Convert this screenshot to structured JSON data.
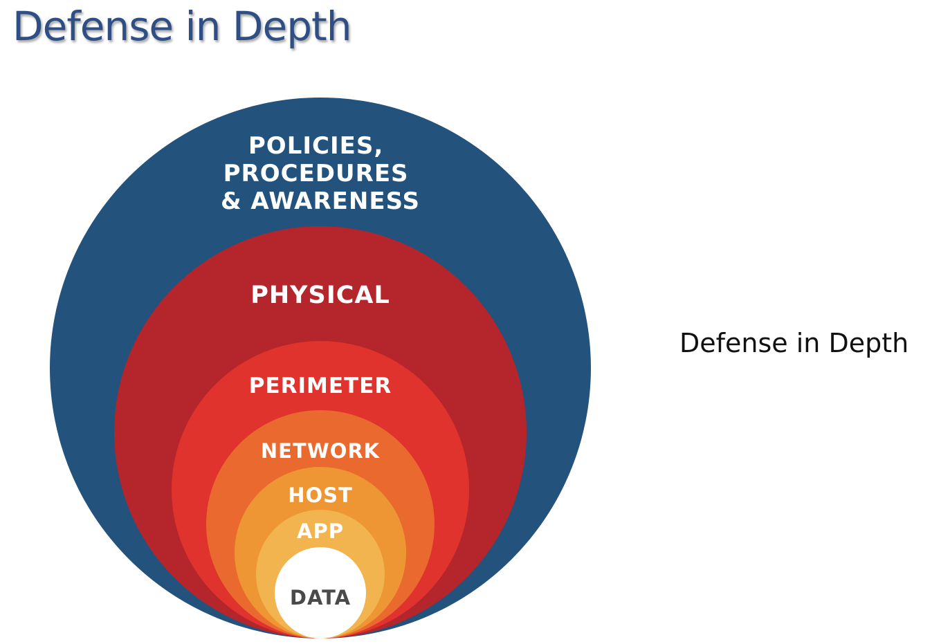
{
  "slide": {
    "title": "Defense in Depth",
    "side_caption": "Defense in Depth"
  },
  "diagram": {
    "layers": [
      {
        "id": "policies",
        "label_lines": [
          "POLICIES,",
          "PROCEDURES",
          "& AWARENESS"
        ],
        "color": "#23527c"
      },
      {
        "id": "physical",
        "label_lines": [
          "PHYSICAL"
        ],
        "color": "#b5252c"
      },
      {
        "id": "perimeter",
        "label_lines": [
          "PERIMETER"
        ],
        "color": "#e1332d"
      },
      {
        "id": "network",
        "label_lines": [
          "NETWORK"
        ],
        "color": "#e9692e"
      },
      {
        "id": "host",
        "label_lines": [
          "HOST"
        ],
        "color": "#ee9634"
      },
      {
        "id": "app",
        "label_lines": [
          "APP"
        ],
        "color": "#f2b44f"
      },
      {
        "id": "data",
        "label_lines": [
          "DATA"
        ],
        "color": "#ffffff"
      }
    ]
  }
}
